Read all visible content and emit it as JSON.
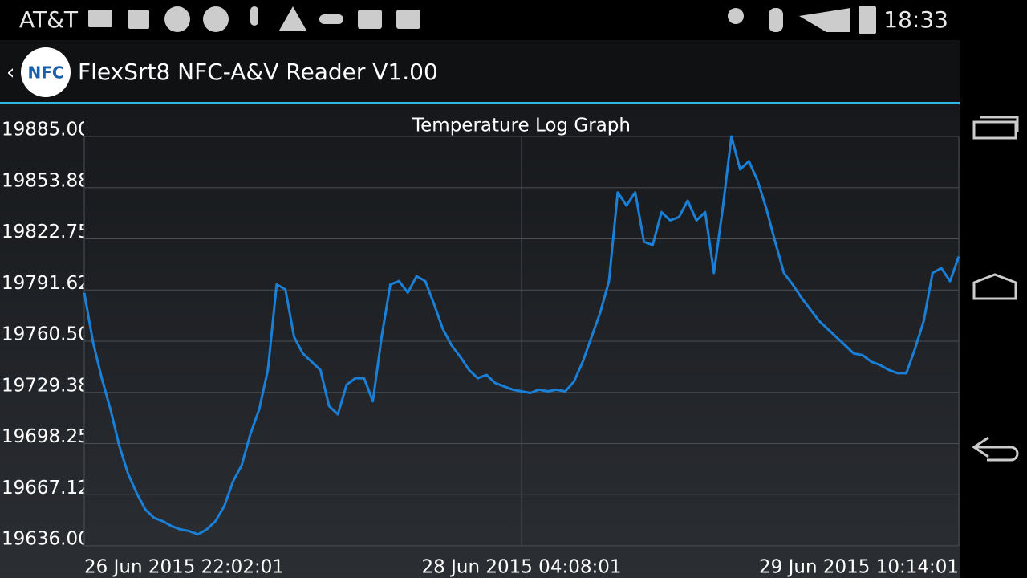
{
  "status_bar": {
    "carrier": "AT&T",
    "time": "18:33"
  },
  "app": {
    "logo": "NFC",
    "title": "FlexSrt8 NFC-A&V Reader V1.00"
  },
  "chart_data": {
    "type": "line",
    "title": "Temperature Log Graph",
    "xticks": [
      "26 Jun 2015 22:02:01",
      "28 Jun 2015 04:08:01",
      "29 Jun 2015 10:14:01"
    ],
    "ylim": [
      19636,
      19885
    ],
    "yticks": [
      {
        "value": 19636,
        "label": "19636.00"
      },
      {
        "value": 19667.125,
        "label": "19667.12"
      },
      {
        "value": 19698.25,
        "label": "19698.25"
      },
      {
        "value": 19729.375,
        "label": "19729.38"
      },
      {
        "value": 19760.5,
        "label": "19760.50"
      },
      {
        "value": 19791.625,
        "label": "19791.62"
      },
      {
        "value": 19822.75,
        "label": "19822.75"
      },
      {
        "value": 19853.875,
        "label": "19853.88"
      },
      {
        "value": 19885,
        "label": "19885.00"
      }
    ],
    "grid": true,
    "series": [
      {
        "name": "Temperature",
        "color": "#1a7fd6",
        "values": [
          19790,
          19760,
          19738,
          19719,
          19697,
          19680,
          19668,
          19658,
          19653,
          19651,
          19648,
          19646,
          19645,
          19643,
          19646,
          19651,
          19660,
          19675,
          19685,
          19704,
          19719,
          19743,
          19795,
          19792,
          19763,
          19753,
          19748,
          19743,
          19721,
          19716,
          19734,
          19738,
          19738,
          19724,
          19763,
          19795,
          19797,
          19790,
          19800,
          19797,
          19783,
          19768,
          19758,
          19751,
          19743,
          19738,
          19740,
          19735,
          19733,
          19731,
          19730,
          19729,
          19731,
          19730,
          19731,
          19730,
          19736,
          19748,
          19763,
          19778,
          19797,
          19851,
          19843,
          19851,
          19821,
          19819,
          19839,
          19834,
          19836,
          19846,
          19834,
          19839,
          19802,
          19841,
          19885,
          19865,
          19870,
          19858,
          19841,
          19821,
          19802,
          19795,
          19787,
          19780,
          19773,
          19768,
          19763,
          19758,
          19753,
          19752,
          19748,
          19746,
          19743,
          19741,
          19741,
          19756,
          19773,
          19802,
          19805,
          19797,
          19812
        ]
      }
    ]
  }
}
